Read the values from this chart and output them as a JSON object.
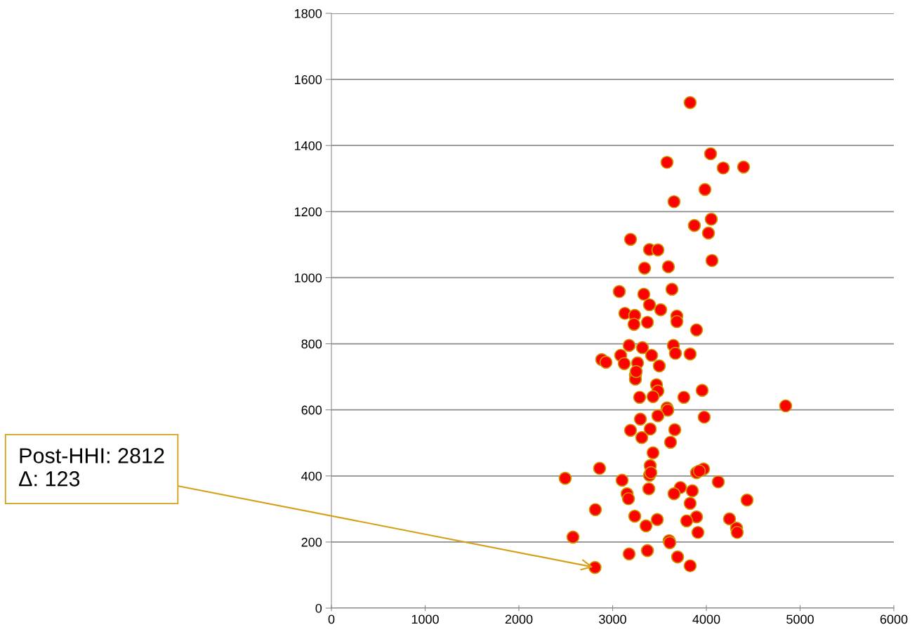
{
  "chart_data": {
    "type": "scatter",
    "xlim": [
      0,
      6000
    ],
    "ylim": [
      0,
      1800
    ],
    "xticks": [
      0,
      1000,
      2000,
      3000,
      4000,
      5000,
      6000
    ],
    "yticks": [
      0,
      200,
      400,
      600,
      800,
      1000,
      1200,
      1400,
      1600,
      1800
    ],
    "grid": "y",
    "marker": "circle",
    "legend": false,
    "annotations": [
      {
        "text": "Post-HHI: 2812\nΔ: 123",
        "x": 2812,
        "y": 123
      }
    ],
    "series": [
      {
        "color": "#ff0000",
        "x": [
          3827,
          3580,
          4045,
          4180,
          4397,
          3985,
          3655,
          4052,
          3872,
          4022,
          3191,
          3393,
          3483,
          4060,
          3341,
          3595,
          3071,
          3333,
          3633,
          3393,
          3513,
          3131,
          3236,
          3228,
          3371,
          3685,
          3685,
          3895,
          3318,
          3176,
          3648,
          3670,
          3827,
          2884,
          2929,
          3086,
          3124,
          3266,
          3416,
          3498,
          3243,
          3243,
          3251,
          3468,
          3483,
          3431,
          3288,
          3955,
          3760,
          3580,
          3588,
          4846,
          3296,
          3483,
          3977,
          3191,
          3401,
          3663,
          3311,
          3618,
          3431,
          2494,
          2861,
          3101,
          3393,
          3401,
          3408,
          3970,
          3895,
          3925,
          4127,
          3723,
          3850,
          3154,
          3169,
          3386,
          3655,
          3827,
          4434,
          2816,
          3236,
          3476,
          3356,
          3895,
          3790,
          4247,
          4322,
          4329,
          3910,
          2577,
          3603,
          3610,
          3176,
          3371,
          3693,
          3827,
          2812
        ],
        "values": [
          1530,
          1349,
          1375,
          1332,
          1335,
          1267,
          1230,
          1177,
          1158,
          1135,
          1116,
          1085,
          1084,
          1052,
          1029,
          1033,
          958,
          950,
          965,
          918,
          903,
          892,
          886,
          859,
          865,
          884,
          867,
          842,
          788,
          795,
          795,
          771,
          769,
          752,
          744,
          765,
          740,
          742,
          765,
          733,
          705,
          693,
          716,
          676,
          657,
          640,
          638,
          659,
          638,
          606,
          599,
          612,
          572,
          582,
          578,
          538,
          542,
          540,
          516,
          502,
          470,
          393,
          423,
          387,
          402,
          431,
          410,
          421,
          410,
          415,
          382,
          365,
          355,
          346,
          331,
          361,
          346,
          317,
          327,
          298,
          278,
          268,
          249,
          276,
          264,
          270,
          242,
          229,
          229,
          215,
          204,
          198,
          164,
          174,
          155,
          128,
          123
        ]
      }
    ]
  }
}
